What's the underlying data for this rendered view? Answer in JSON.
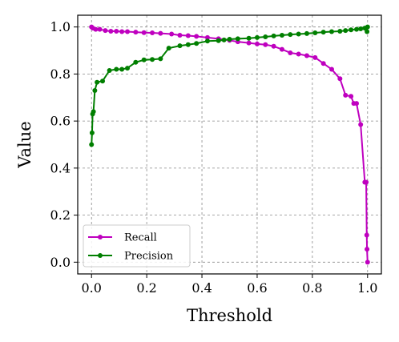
{
  "chart_data": {
    "type": "line",
    "title": "",
    "xlabel": "Threshold",
    "ylabel": "Value",
    "xlim": [
      -0.05,
      1.05
    ],
    "ylim": [
      -0.05,
      1.05
    ],
    "xticks": [
      "0.0",
      "0.2",
      "0.4",
      "0.6",
      "0.8",
      "1.0"
    ],
    "yticks": [
      "0.0",
      "0.2",
      "0.4",
      "0.6",
      "0.8",
      "1.0"
    ],
    "grid": true,
    "legend_position": "bottom-left",
    "series": [
      {
        "name": "Recall",
        "color": "#bf00bf",
        "points": [
          [
            0.0,
            1.0
          ],
          [
            0.005,
            0.995
          ],
          [
            0.015,
            0.99
          ],
          [
            0.03,
            0.99
          ],
          [
            0.05,
            0.985
          ],
          [
            0.07,
            0.982
          ],
          [
            0.09,
            0.982
          ],
          [
            0.11,
            0.98
          ],
          [
            0.13,
            0.98
          ],
          [
            0.16,
            0.978
          ],
          [
            0.19,
            0.976
          ],
          [
            0.22,
            0.975
          ],
          [
            0.25,
            0.973
          ],
          [
            0.29,
            0.97
          ],
          [
            0.32,
            0.965
          ],
          [
            0.35,
            0.963
          ],
          [
            0.38,
            0.96
          ],
          [
            0.42,
            0.955
          ],
          [
            0.46,
            0.95
          ],
          [
            0.5,
            0.943
          ],
          [
            0.53,
            0.937
          ],
          [
            0.57,
            0.932
          ],
          [
            0.6,
            0.928
          ],
          [
            0.63,
            0.925
          ],
          [
            0.66,
            0.918
          ],
          [
            0.69,
            0.905
          ],
          [
            0.72,
            0.89
          ],
          [
            0.75,
            0.885
          ],
          [
            0.78,
            0.878
          ],
          [
            0.81,
            0.87
          ],
          [
            0.84,
            0.845
          ],
          [
            0.87,
            0.82
          ],
          [
            0.9,
            0.78
          ],
          [
            0.92,
            0.71
          ],
          [
            0.94,
            0.705
          ],
          [
            0.95,
            0.675
          ],
          [
            0.96,
            0.675
          ],
          [
            0.975,
            0.585
          ],
          [
            0.99,
            0.34
          ],
          [
            0.995,
            0.34
          ],
          [
            0.997,
            0.115
          ],
          [
            0.998,
            0.055
          ],
          [
            1.0,
            0.0
          ]
        ]
      },
      {
        "name": "Precision",
        "color": "#007f00",
        "points": [
          [
            0.0,
            0.5
          ],
          [
            0.002,
            0.55
          ],
          [
            0.004,
            0.63
          ],
          [
            0.007,
            0.64
          ],
          [
            0.012,
            0.73
          ],
          [
            0.02,
            0.765
          ],
          [
            0.04,
            0.77
          ],
          [
            0.065,
            0.815
          ],
          [
            0.09,
            0.82
          ],
          [
            0.11,
            0.82
          ],
          [
            0.13,
            0.825
          ],
          [
            0.16,
            0.85
          ],
          [
            0.19,
            0.86
          ],
          [
            0.22,
            0.862
          ],
          [
            0.25,
            0.865
          ],
          [
            0.28,
            0.91
          ],
          [
            0.32,
            0.92
          ],
          [
            0.35,
            0.925
          ],
          [
            0.38,
            0.93
          ],
          [
            0.42,
            0.94
          ],
          [
            0.46,
            0.942
          ],
          [
            0.48,
            0.945
          ],
          [
            0.5,
            0.948
          ],
          [
            0.53,
            0.95
          ],
          [
            0.57,
            0.952
          ],
          [
            0.6,
            0.955
          ],
          [
            0.63,
            0.958
          ],
          [
            0.66,
            0.962
          ],
          [
            0.69,
            0.965
          ],
          [
            0.72,
            0.968
          ],
          [
            0.75,
            0.97
          ],
          [
            0.78,
            0.972
          ],
          [
            0.81,
            0.975
          ],
          [
            0.84,
            0.978
          ],
          [
            0.87,
            0.98
          ],
          [
            0.9,
            0.982
          ],
          [
            0.92,
            0.985
          ],
          [
            0.94,
            0.988
          ],
          [
            0.96,
            0.99
          ],
          [
            0.975,
            0.992
          ],
          [
            0.99,
            0.995
          ],
          [
            0.998,
            0.98
          ],
          [
            1.0,
            1.0
          ]
        ]
      }
    ]
  }
}
